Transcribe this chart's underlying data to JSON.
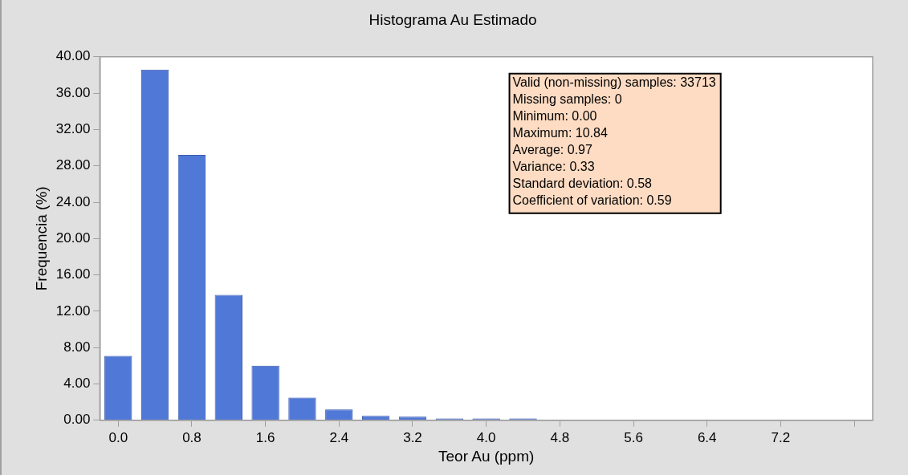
{
  "chart_data": {
    "type": "histogram",
    "title": "Histograma Au Estimado",
    "xlabel": "Teor Au (ppm)",
    "ylabel": "Frequencia (%)",
    "bins": [
      -0.2,
      0.2,
      0.6,
      1.0,
      1.4,
      1.8,
      2.2,
      2.6,
      3.0,
      3.4,
      3.8,
      4.2,
      4.6,
      5.0,
      5.4,
      5.8,
      6.2,
      6.6,
      7.0,
      7.4,
      7.8
    ],
    "values": [
      7.1,
      38.6,
      29.2,
      13.8,
      6.0,
      2.5,
      1.2,
      0.5,
      0.4,
      0.2,
      0.2,
      0.2,
      0.03,
      0.03,
      0.03,
      0.03,
      0.03,
      0.03,
      0.03,
      0.03
    ],
    "color": "#5078d6",
    "xlim": [
      -0.2,
      8.2
    ],
    "xticks": [
      {
        "value": 0,
        "label": "0.0"
      },
      {
        "value": 0.8,
        "label": "0.8"
      },
      {
        "value": 1.6,
        "label": "1.6"
      },
      {
        "value": 2.4,
        "label": "2.4"
      },
      {
        "value": 3.2,
        "label": "3.2"
      },
      {
        "value": 4.0,
        "label": "4.0"
      },
      {
        "value": 4.8,
        "label": "4.8"
      },
      {
        "value": 5.6,
        "label": "5.6"
      },
      {
        "value": 6.4,
        "label": "6.4"
      },
      {
        "value": 7.2,
        "label": "7.2"
      },
      {
        "value": 8.0,
        "label": null
      }
    ],
    "ylim": [
      0,
      40
    ],
    "yticks": [
      {
        "value": 0,
        "label": "0.00"
      },
      {
        "value": 4,
        "label": "4.00"
      },
      {
        "value": 8,
        "label": "8.00"
      },
      {
        "value": 12,
        "label": "12.00"
      },
      {
        "value": 16,
        "label": "16.00"
      },
      {
        "value": 20,
        "label": "20.00"
      },
      {
        "value": 24,
        "label": "24.00"
      },
      {
        "value": 28,
        "label": "28.00"
      },
      {
        "value": 32,
        "label": "32.00"
      },
      {
        "value": 36,
        "label": "36.00"
      },
      {
        "value": 40,
        "label": "40.00"
      }
    ],
    "grid": false,
    "legend": false,
    "annotations": [
      "Valid (non-missing) samples: 33713",
      "Missing samples: 0",
      "Minimum: 0.00",
      "Maximum: 10.84",
      "Average: 0.97",
      "Variance: 0.33",
      "Standard deviation: 0.58",
      "Coefficient of variation: 0.59"
    ]
  }
}
